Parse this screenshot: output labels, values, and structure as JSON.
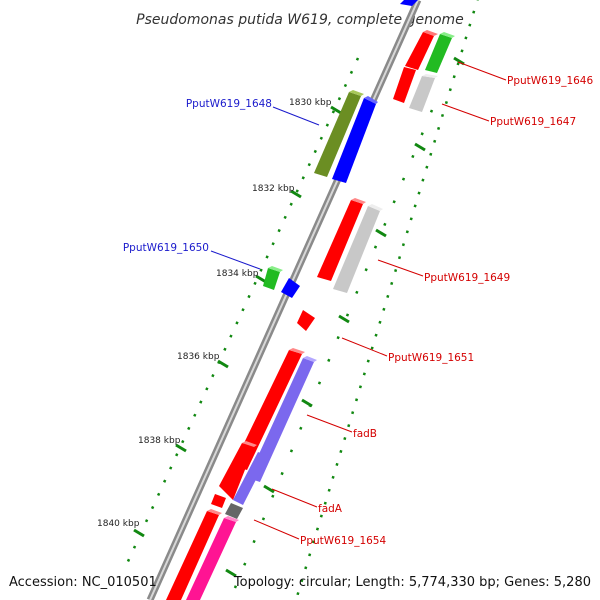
{
  "title": "Pseudomonas putida W619, complete genome",
  "footer": {
    "accession": "Accession: NC_010501",
    "summary": "Topology: circular; Length: 5,774,330 bp; Genes: 5,280"
  },
  "ticks": [
    "1830 kbp",
    "1832 kbp",
    "1834 kbp",
    "1836 kbp",
    "1838 kbp",
    "1840 kbp"
  ],
  "gene_labels": {
    "g1646": "PputW619_1646",
    "g1647": "PputW619_1647",
    "g1648": "PputW619_1648",
    "g1649": "PputW619_1649",
    "g1650": "PputW619_1650",
    "g1651": "PputW619_1651",
    "fadB": "fadB",
    "fadA": "fadA",
    "g1654": "PputW619_1654"
  },
  "colors": {
    "red": "#ff0000",
    "blue": "#0000ff",
    "green": "#22bb22",
    "olive": "#6b8e23",
    "grey": "#c8c8c8",
    "purple": "#7b68ee",
    "pink": "#ff1493",
    "darkgrey": "#777777",
    "backbone": "#8a8a8a",
    "dots": "#118811"
  }
}
